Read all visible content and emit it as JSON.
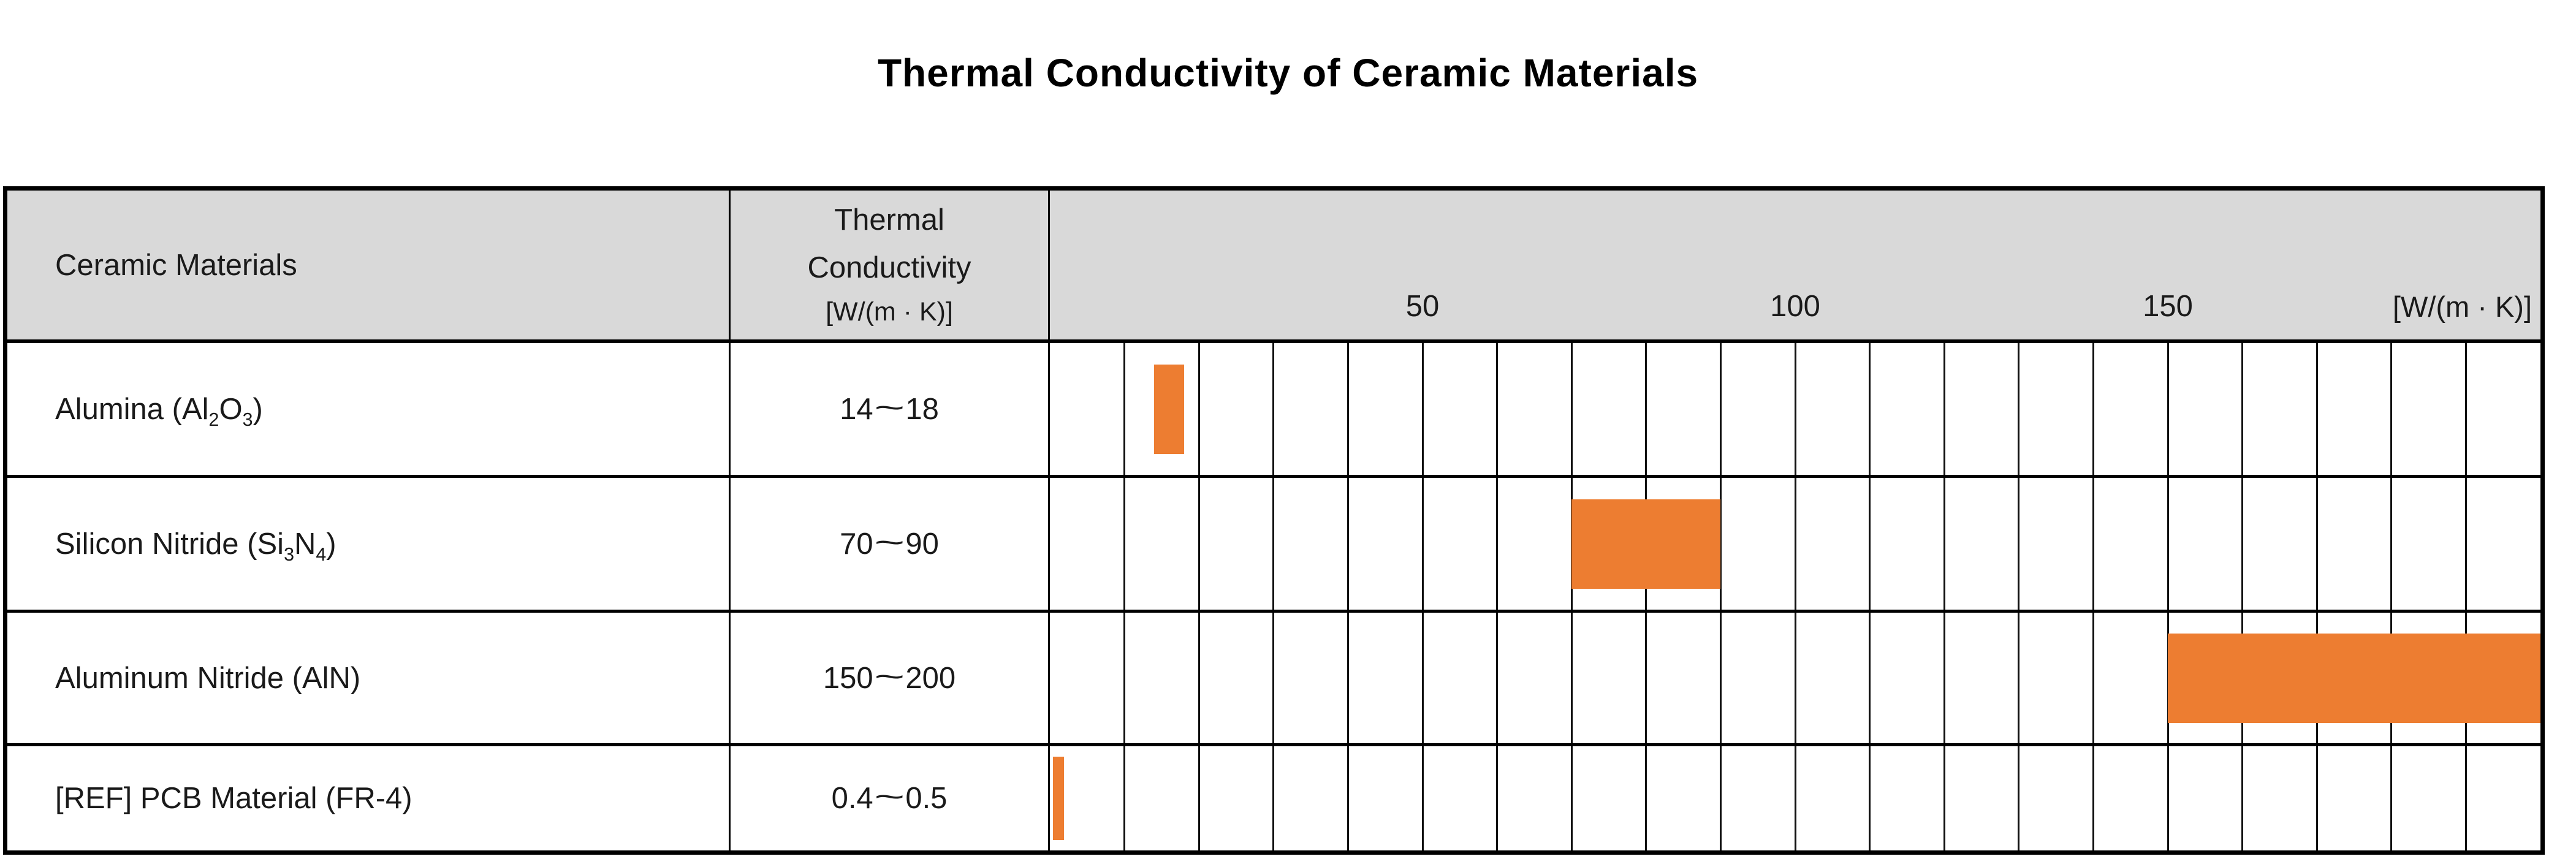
{
  "title": "Thermal Conductivity of Ceramic Materials",
  "header": {
    "col1": "Ceramic Materials",
    "col2_lines": [
      "Thermal",
      "Conductivity",
      "【W/(m・K)】"
    ],
    "axis_unit": "【W/(m・K)】"
  },
  "rows": [
    {
      "material_segments": [
        {
          "t": "Alumina (Al"
        },
        {
          "t": "2",
          "sub": true
        },
        {
          "t": "O"
        },
        {
          "t": "3",
          "sub": true
        },
        {
          "t": ")"
        }
      ],
      "material_plain": "Alumina (Al2O3)",
      "range_label": "14~18",
      "min": 14,
      "max": 18
    },
    {
      "material_segments": [
        {
          "t": "Silicon Nitride (Si"
        },
        {
          "t": "3",
          "sub": true
        },
        {
          "t": "N"
        },
        {
          "t": "4",
          "sub": true
        },
        {
          "t": ")"
        }
      ],
      "material_plain": "Silicon Nitride (Si3N4)",
      "range_label": "70~90",
      "min": 70,
      "max": 90
    },
    {
      "material_segments": [
        {
          "t": "Aluminum Nitride (AlN)"
        }
      ],
      "material_plain": "Aluminum Nitride (AlN)",
      "range_label": "150~200",
      "min": 150,
      "max": 200
    },
    {
      "material_segments": [
        {
          "t": "[REF] PCB Material (FR-4)"
        }
      ],
      "material_plain": "[REF] PCB Material (FR-4)",
      "range_label": "0.4~0.5",
      "min": 0.4,
      "max": 0.5
    }
  ],
  "chart_data": {
    "type": "bar",
    "variant": "horizontal-range-bars",
    "title": "Thermal Conductivity of Ceramic Materials",
    "categories": [
      "Alumina (Al2O3)",
      "Silicon Nitride (Si3N4)",
      "Aluminum Nitride (AlN)",
      "[REF] PCB Material (FR-4)"
    ],
    "series": [
      {
        "name": "Thermal Conductivity 【W/(m・K)】",
        "ranges": [
          [
            14,
            18
          ],
          [
            70,
            90
          ],
          [
            150,
            200
          ],
          [
            0.4,
            0.5
          ]
        ]
      }
    ],
    "xlabel": "【W/(m・K)】",
    "xlim": [
      0,
      200
    ],
    "xticks": [
      50,
      100,
      150
    ],
    "gridline_interval": 10,
    "grid": "vertical-only",
    "legend": "none",
    "bar_color": "#ED7D31"
  },
  "colors": {
    "bar": "#ED7D31",
    "header_bg": "#D9D9D9",
    "border": "#000000",
    "text": "#1A1A1A"
  }
}
